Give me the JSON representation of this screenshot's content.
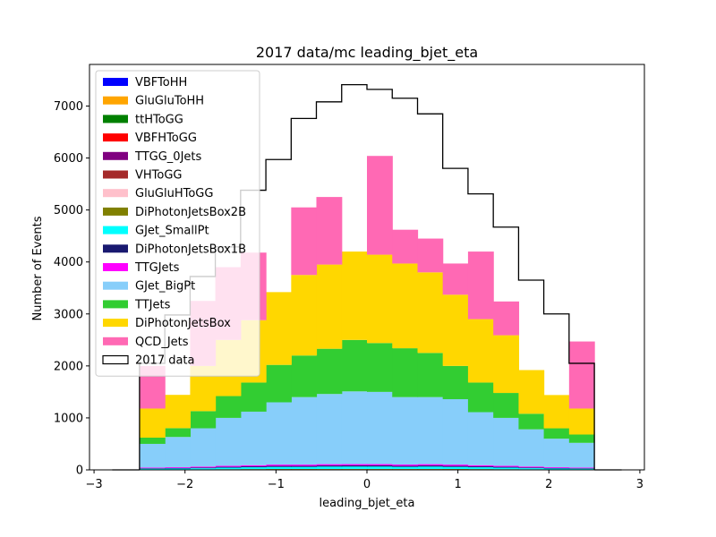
{
  "chart_data": {
    "type": "bar",
    "title": "2017 data/mc leading_bjet_eta",
    "xlabel": "leading_bjet_eta",
    "ylabel": "Number of Events",
    "xlim": [
      -3.05,
      3.05
    ],
    "ylim": [
      0,
      7800
    ],
    "xticks": [
      -3,
      -2,
      -1,
      0,
      1,
      2,
      3
    ],
    "xtick_labels": [
      "−3",
      "−2",
      "−1",
      "0",
      "1",
      "2",
      "3"
    ],
    "yticks": [
      0,
      1000,
      2000,
      3000,
      4000,
      5000,
      6000,
      7000
    ],
    "ytick_labels": [
      "0",
      "1000",
      "2000",
      "3000",
      "4000",
      "5000",
      "6000",
      "7000"
    ],
    "grid": false,
    "legend_position": "upper-left",
    "bin_edges": [
      -2.5,
      -2.222,
      -1.944,
      -1.667,
      -1.389,
      -1.111,
      -0.833,
      -0.556,
      -0.278,
      0.0,
      0.278,
      0.556,
      0.833,
      1.111,
      1.389,
      1.667,
      1.944,
      2.222,
      2.5
    ],
    "stacked_series": [
      {
        "name": "VBFToHH",
        "color": "#0000ff",
        "values": [
          0,
          0,
          0,
          0,
          0,
          0,
          0,
          0,
          0,
          0,
          0,
          0,
          0,
          0,
          0,
          0,
          0,
          0
        ]
      },
      {
        "name": "GluGluToHH",
        "color": "#ffa500",
        "values": [
          0,
          0,
          0,
          0,
          0,
          0,
          0,
          0,
          0,
          0,
          0,
          0,
          0,
          0,
          0,
          0,
          0,
          0
        ]
      },
      {
        "name": "ttHToGG",
        "color": "#008000",
        "values": [
          0,
          0,
          0,
          0,
          0,
          0,
          0,
          0,
          0,
          0,
          0,
          0,
          0,
          0,
          0,
          0,
          0,
          0
        ]
      },
      {
        "name": "VBFHToGG",
        "color": "#ff0000",
        "values": [
          0,
          0,
          0,
          0,
          0,
          0,
          0,
          0,
          0,
          0,
          0,
          0,
          0,
          0,
          0,
          0,
          0,
          0
        ]
      },
      {
        "name": "TTGG_0Jets",
        "color": "#800080",
        "values": [
          0,
          0,
          0,
          0,
          0,
          0,
          0,
          0,
          0,
          0,
          0,
          0,
          0,
          0,
          0,
          0,
          0,
          0
        ]
      },
      {
        "name": "VHToGG",
        "color": "#a52a2a",
        "values": [
          0,
          0,
          0,
          0,
          0,
          0,
          0,
          0,
          0,
          0,
          0,
          0,
          0,
          0,
          0,
          0,
          0,
          0
        ]
      },
      {
        "name": "GluGluHToGG",
        "color": "#ffc0cb",
        "values": [
          5,
          5,
          6,
          8,
          9,
          10,
          10,
          11,
          11,
          11,
          11,
          11,
          10,
          9,
          8,
          7,
          5,
          5
        ]
      },
      {
        "name": "DiPhotonJetsBox2B",
        "color": "#808000",
        "values": [
          3,
          3,
          4,
          5,
          6,
          7,
          7,
          7,
          8,
          8,
          7,
          7,
          7,
          6,
          5,
          4,
          3,
          3
        ]
      },
      {
        "name": "GJet_SmallPt",
        "color": "#00ffff",
        "values": [
          15,
          18,
          22,
          30,
          35,
          40,
          40,
          45,
          45,
          45,
          40,
          45,
          40,
          35,
          30,
          22,
          18,
          15
        ]
      },
      {
        "name": "DiPhotonJetsBox1B",
        "color": "#191970",
        "values": [
          10,
          12,
          14,
          16,
          18,
          20,
          20,
          22,
          22,
          22,
          20,
          22,
          20,
          18,
          16,
          14,
          12,
          10
        ]
      },
      {
        "name": "TTGJets",
        "color": "#ff00ff",
        "values": [
          12,
          15,
          18,
          20,
          22,
          25,
          25,
          25,
          25,
          25,
          25,
          25,
          25,
          22,
          20,
          18,
          15,
          12
        ]
      },
      {
        "name": "GJet_BigPt",
        "color": "#87cefa",
        "values": [
          455,
          580,
          736,
          921,
          1030,
          1198,
          1298,
          1350,
          1399,
          1389,
          1297,
          1290,
          1258,
          1020,
          921,
          715,
          547,
          475
        ]
      },
      {
        "name": "TTJets",
        "color": "#32cd32",
        "values": [
          120,
          170,
          330,
          420,
          560,
          720,
          800,
          870,
          990,
          940,
          940,
          850,
          640,
          570,
          480,
          300,
          200,
          160
        ]
      },
      {
        "name": "DiPhotonJetsBox",
        "color": "#ffd700",
        "values": [
          560,
          640,
          870,
          1080,
          1200,
          1400,
          1550,
          1620,
          1700,
          1700,
          1630,
          1550,
          1370,
          1220,
          1110,
          840,
          640,
          500
        ]
      },
      {
        "name": "QCD_Jets",
        "color": "#ff69b4",
        "values": [
          820,
          0,
          1250,
          1400,
          1300,
          0,
          1300,
          1300,
          0,
          1900,
          650,
          650,
          600,
          1300,
          650,
          0,
          0,
          1290
        ]
      }
    ],
    "data_series": {
      "name": "2017 data",
      "color": "#000000",
      "values": [
        2050,
        2980,
        3720,
        4290,
        5380,
        5970,
        6760,
        7080,
        7410,
        7320,
        7150,
        6850,
        5800,
        5310,
        4670,
        3650,
        3000,
        2050
      ]
    }
  }
}
